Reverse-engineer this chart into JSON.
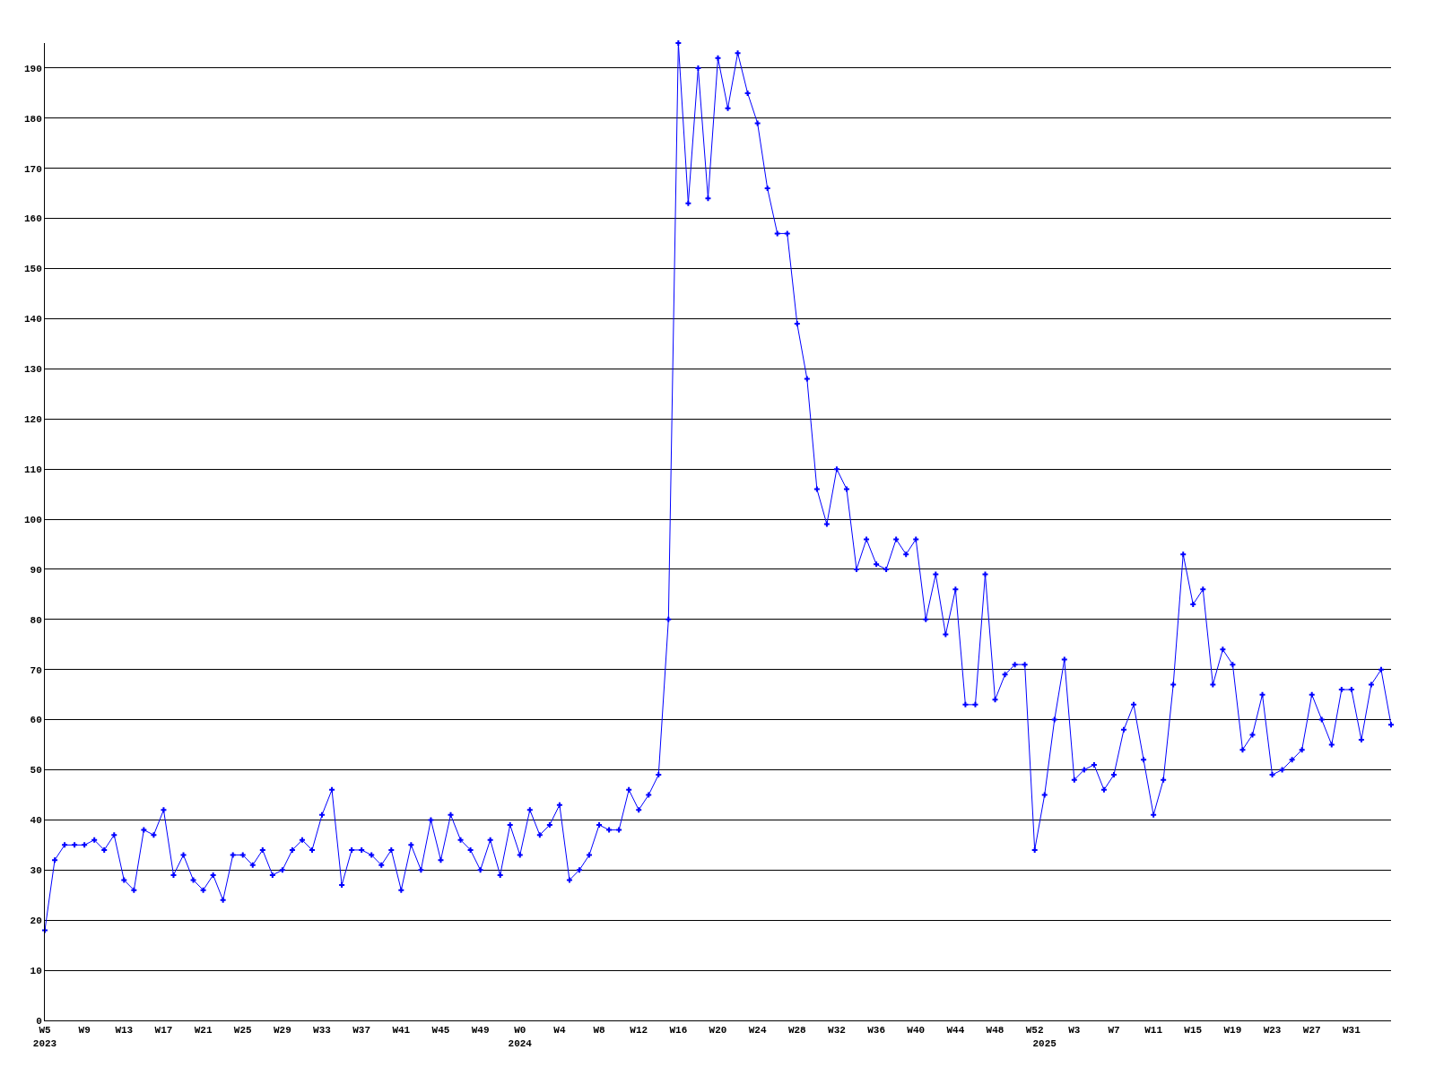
{
  "chart_data": {
    "type": "line",
    "categories": [
      "W5\n2023",
      null,
      null,
      null,
      "W9",
      null,
      null,
      null,
      "W13",
      null,
      null,
      null,
      "W17",
      null,
      null,
      null,
      "W21",
      null,
      null,
      null,
      "W25",
      null,
      null,
      null,
      "W29",
      null,
      null,
      null,
      "W33",
      null,
      null,
      null,
      "W37",
      null,
      null,
      null,
      "W41",
      null,
      null,
      null,
      "W45",
      null,
      null,
      null,
      "W49",
      null,
      null,
      null,
      "W0\n2024",
      null,
      null,
      null,
      "W4",
      null,
      null,
      null,
      "W8",
      null,
      null,
      null,
      "W12",
      null,
      null,
      null,
      "W16",
      null,
      null,
      null,
      "W20",
      null,
      null,
      null,
      "W24",
      null,
      null,
      null,
      "W28",
      null,
      null,
      null,
      "W32",
      null,
      null,
      null,
      "W36",
      null,
      null,
      null,
      "W40",
      null,
      null,
      null,
      "W44",
      null,
      null,
      null,
      "W48",
      null,
      null,
      null,
      "W52",
      "\n2025",
      null,
      null,
      "W3",
      null,
      null,
      null,
      "W7",
      null,
      null,
      null,
      "W11",
      null,
      null,
      null,
      "W15",
      null,
      null,
      null,
      "W19",
      null,
      null,
      null,
      "W23",
      null,
      null,
      null,
      "W27",
      null,
      null,
      null,
      "W31",
      null,
      null,
      null,
      null
    ],
    "series": [
      {
        "color": "#0000ff",
        "values": [
          18,
          32,
          35,
          35,
          35,
          36,
          34,
          37,
          28,
          26,
          38,
          37,
          42,
          29,
          33,
          28,
          26,
          29,
          24,
          33,
          33,
          31,
          34,
          29,
          30,
          34,
          36,
          34,
          41,
          46,
          27,
          34,
          34,
          33,
          31,
          34,
          26,
          35,
          30,
          40,
          32,
          41,
          36,
          34,
          30,
          36,
          29,
          39,
          33,
          42,
          37,
          39,
          43,
          28,
          30,
          33,
          39,
          38,
          38,
          46,
          42,
          45,
          49,
          80,
          195,
          163,
          190,
          164,
          192,
          182,
          193,
          185,
          179,
          166,
          157,
          157,
          139,
          128,
          106,
          99,
          110,
          106,
          90,
          96,
          91,
          90,
          96,
          93,
          96,
          80,
          89,
          77,
          86,
          63,
          63,
          89,
          64,
          69,
          71,
          71,
          34,
          45,
          60,
          72,
          48,
          50,
          51,
          46,
          49,
          58,
          63,
          52,
          41,
          48,
          67,
          93,
          83,
          86,
          67,
          74,
          71,
          54,
          57,
          65,
          49,
          50,
          52,
          54,
          65,
          60,
          55,
          66,
          66,
          56,
          67,
          70,
          59
        ]
      }
    ],
    "ylim": [
      0,
      195
    ],
    "yticks": [
      0,
      10,
      20,
      30,
      40,
      50,
      60,
      70,
      80,
      90,
      100,
      110,
      120,
      130,
      140,
      150,
      160,
      170,
      180,
      190
    ],
    "grid": "y",
    "legend": false,
    "marker": "cross",
    "line_style": "solid"
  }
}
